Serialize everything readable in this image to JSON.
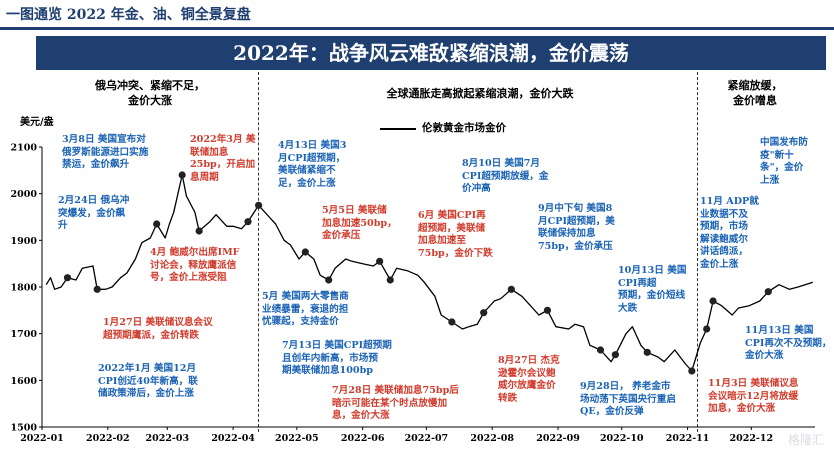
{
  "header": {
    "page_title": "一图通览 2022 年金、油、铜全景复盘",
    "banner": "2022年：战争风云难敌紧缩浪潮，金价震荡"
  },
  "phases": [
    {
      "id": "p1",
      "text": "俄乌冲突、紧缩不足，\n金价大涨"
    },
    {
      "id": "p2",
      "text": "全球通胀走高掀起紧缩浪潮，金价大跌"
    },
    {
      "id": "p3",
      "text": "紧缩放缓，\n金价噌息"
    }
  ],
  "annotations": [
    {
      "id": "a1",
      "color": "blue",
      "text": "3月8日 美国宣布对\n俄罗斯能源进口实施\n禁运，金价飙升"
    },
    {
      "id": "a2",
      "color": "blue",
      "text": "2月24日 俄乌冲\n突爆发，金价飙\n升"
    },
    {
      "id": "a3",
      "color": "red",
      "text": "2022年3月 美\n联储加息\n25bp，开启加\n息周期"
    },
    {
      "id": "a4",
      "color": "blue",
      "text": "4月13日 美国3\n月CPI超预期，\n美联储紧缩不\n足，金价上涨"
    },
    {
      "id": "a5",
      "color": "red",
      "text": "4月 鲍威尔出席IMF\n讨论会，释放鹰派信\n号，金价上涨受阻"
    },
    {
      "id": "a6",
      "color": "red",
      "text": "1月27日 美联储议息会议\n超预期鹰派，金价转跌"
    },
    {
      "id": "a7",
      "color": "blue",
      "text": "2022年1月 美国12月\nCPI创近40年新高，联\n储政策滞后，金价上涨"
    },
    {
      "id": "a8",
      "color": "red",
      "text": "5月5日 美联储\n加息加速50bp，\n金价承压"
    },
    {
      "id": "a9",
      "color": "blue",
      "text": "5月 美国两大零售商\n业绩暴雷，衰退的担\n忧骤起，支持金价"
    },
    {
      "id": "a10",
      "color": "blue",
      "text": "7月13日 美国CPI超预期\n且创年内新高，市场预\n期美联储加息100bp"
    },
    {
      "id": "a11",
      "color": "red",
      "text": "7月28日 美联储加息75bp后\n暗示可能在某个时点放慢加\n息，金价大涨"
    },
    {
      "id": "a12",
      "color": "red",
      "text": "6月 美国CPI再\n超预期，美联储\n加息加速至\n75bp，金价下跌"
    },
    {
      "id": "a13",
      "color": "blue",
      "text": "8月10日 美国7月\nCPI超预期放缓，金\n价冲高"
    },
    {
      "id": "a14",
      "color": "blue",
      "text": "9月中下旬 美国8\n月CPI超预期，美\n联储保持加息\n75bp，金价承压"
    },
    {
      "id": "a15",
      "color": "red",
      "text": "8月27日 杰克\n逊霍尔会议鲍\n威尔放鹰金价\n转跌"
    },
    {
      "id": "a16",
      "color": "blue",
      "text": "10月13日 美国\nCPI再超\n预期，金价短线\n大跌"
    },
    {
      "id": "a17",
      "color": "blue",
      "text": "9月28日， 养老金市\n场动荡下英国央行重启\nQE，金价反弹"
    },
    {
      "id": "a18",
      "color": "blue",
      "text": "中国发布防\n疫\"新十\n条\"，金价\n上涨"
    },
    {
      "id": "a19",
      "color": "blue",
      "text": "11月 ADP就\n业数据不及\n预期，市场\n解读鲍威尔\n讲话鸽派，\n金价上涨"
    },
    {
      "id": "a20",
      "color": "blue",
      "text": "11月13日 美国\nCPI再次不及预期，\n金价大涨"
    },
    {
      "id": "a21",
      "color": "red",
      "text": "11月3日 美联储议息\n会议暗示12月将放缓\n加息，金价大涨"
    }
  ],
  "watermark": "格隆汇",
  "chart_data": {
    "type": "line",
    "ylabel": "美元/盎",
    "ylim": [
      1500,
      2100
    ],
    "yticks": [
      1500,
      1600,
      1700,
      1800,
      1900,
      2000,
      2100
    ],
    "x_tick_labels": [
      "2022-01",
      "2022-02",
      "2022-03",
      "2022-04",
      "2022-05",
      "2022-06",
      "2022-07",
      "2022-08",
      "2022-09",
      "2022-10",
      "2022-11",
      "2022-12"
    ],
    "legend": "伦敦黄金市场金价",
    "series": [
      {
        "name": "伦敦黄金市场金价",
        "color": "#000000",
        "x": [
          "2022-01-03",
          "2022-01-05",
          "2022-01-07",
          "2022-01-10",
          "2022-01-13",
          "2022-01-17",
          "2022-01-20",
          "2022-01-25",
          "2022-01-27",
          "2022-01-31",
          "2022-02-03",
          "2022-02-07",
          "2022-02-10",
          "2022-02-14",
          "2022-02-17",
          "2022-02-21",
          "2022-02-24",
          "2022-02-28",
          "2022-03-02",
          "2022-03-04",
          "2022-03-08",
          "2022-03-10",
          "2022-03-14",
          "2022-03-16",
          "2022-03-21",
          "2022-03-24",
          "2022-03-29",
          "2022-04-01",
          "2022-04-05",
          "2022-04-08",
          "2022-04-13",
          "2022-04-18",
          "2022-04-21",
          "2022-04-25",
          "2022-04-28",
          "2022-05-02",
          "2022-05-05",
          "2022-05-09",
          "2022-05-12",
          "2022-05-16",
          "2022-05-19",
          "2022-05-24",
          "2022-05-27",
          "2022-06-01",
          "2022-06-06",
          "2022-06-09",
          "2022-06-14",
          "2022-06-17",
          "2022-06-22",
          "2022-06-27",
          "2022-06-30",
          "2022-07-05",
          "2022-07-08",
          "2022-07-13",
          "2022-07-18",
          "2022-07-21",
          "2022-07-25",
          "2022-07-28",
          "2022-08-02",
          "2022-08-05",
          "2022-08-10",
          "2022-08-15",
          "2022-08-18",
          "2022-08-23",
          "2022-08-27",
          "2022-08-31",
          "2022-09-06",
          "2022-09-09",
          "2022-09-13",
          "2022-09-16",
          "2022-09-21",
          "2022-09-26",
          "2022-09-28",
          "2022-10-03",
          "2022-10-06",
          "2022-10-10",
          "2022-10-13",
          "2022-10-18",
          "2022-10-21",
          "2022-10-26",
          "2022-10-31",
          "2022-11-03",
          "2022-11-07",
          "2022-11-10",
          "2022-11-13",
          "2022-11-17",
          "2022-11-22",
          "2022-11-25",
          "2022-11-30",
          "2022-12-05",
          "2022-12-09",
          "2022-12-14",
          "2022-12-19",
          "2022-12-23",
          "2022-12-30"
        ],
        "values": [
          1805,
          1820,
          1795,
          1800,
          1820,
          1815,
          1840,
          1845,
          1795,
          1795,
          1800,
          1820,
          1830,
          1860,
          1895,
          1905,
          1935,
          1905,
          1935,
          1960,
          2040,
          1995,
          1960,
          1920,
          1940,
          1955,
          1930,
          1930,
          1925,
          1940,
          1975,
          1950,
          1935,
          1900,
          1890,
          1860,
          1875,
          1860,
          1825,
          1815,
          1840,
          1860,
          1855,
          1850,
          1845,
          1855,
          1815,
          1840,
          1835,
          1825,
          1810,
          1780,
          1740,
          1725,
          1710,
          1715,
          1720,
          1745,
          1770,
          1775,
          1795,
          1780,
          1765,
          1740,
          1750,
          1715,
          1710,
          1720,
          1715,
          1675,
          1665,
          1640,
          1655,
          1700,
          1715,
          1675,
          1660,
          1650,
          1640,
          1665,
          1635,
          1620,
          1680,
          1710,
          1770,
          1760,
          1740,
          1755,
          1760,
          1770,
          1790,
          1805,
          1795,
          1800,
          1810
        ]
      }
    ],
    "markers": [
      {
        "date": "2022-01-13",
        "value": 1820
      },
      {
        "date": "2022-01-27",
        "value": 1795
      },
      {
        "date": "2022-02-24",
        "value": 1935
      },
      {
        "date": "2022-03-08",
        "value": 2040
      },
      {
        "date": "2022-03-16",
        "value": 1920
      },
      {
        "date": "2022-04-08",
        "value": 1940
      },
      {
        "date": "2022-04-13",
        "value": 1975
      },
      {
        "date": "2022-05-05",
        "value": 1875
      },
      {
        "date": "2022-05-16",
        "value": 1815
      },
      {
        "date": "2022-06-09",
        "value": 1855
      },
      {
        "date": "2022-06-14",
        "value": 1815
      },
      {
        "date": "2022-07-13",
        "value": 1725
      },
      {
        "date": "2022-07-28",
        "value": 1745
      },
      {
        "date": "2022-08-10",
        "value": 1795
      },
      {
        "date": "2022-08-27",
        "value": 1750
      },
      {
        "date": "2022-09-21",
        "value": 1665
      },
      {
        "date": "2022-09-28",
        "value": 1655
      },
      {
        "date": "2022-10-13",
        "value": 1660
      },
      {
        "date": "2022-11-03",
        "value": 1620
      },
      {
        "date": "2022-11-10",
        "value": 1710
      },
      {
        "date": "2022-11-13",
        "value": 1770
      },
      {
        "date": "2022-12-09",
        "value": 1790
      }
    ]
  }
}
